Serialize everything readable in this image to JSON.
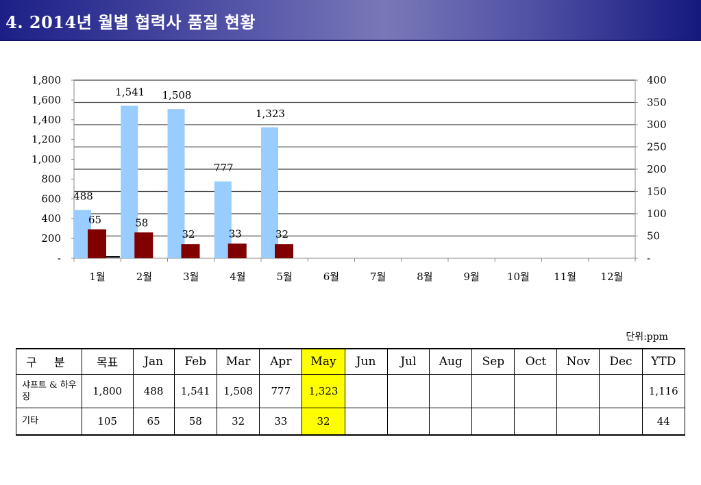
{
  "page": {
    "title": "4. 2014년 월별 협력사 품질 현황"
  },
  "chart_data": {
    "type": "bar",
    "categories": [
      "1월",
      "2월",
      "3월",
      "4월",
      "5월",
      "6월",
      "7월",
      "8월",
      "9월",
      "10월",
      "11월",
      "12월"
    ],
    "series": [
      {
        "values": [
          488,
          1541,
          1508,
          777,
          1323,
          null,
          null,
          null,
          null,
          null,
          null,
          null
        ],
        "axis": "left",
        "color": "#99ccff",
        "labels": [
          "488",
          "1,541",
          "1,508",
          "777",
          "1,323"
        ]
      },
      {
        "values": [
          65,
          58,
          32,
          33,
          32,
          null,
          null,
          null,
          null,
          null,
          null,
          null
        ],
        "axis": "right",
        "color": "#800000",
        "labels": [
          "65",
          "58",
          "32",
          "33",
          "32"
        ]
      }
    ],
    "target_line_left": 0,
    "y_left": {
      "min": 0,
      "max": 1800,
      "step": 200,
      "ticks": [
        "-",
        "200",
        "400",
        "600",
        "800",
        "1,000",
        "1,200",
        "1,400",
        "1,600",
        "1,800"
      ]
    },
    "y_right": {
      "min": 0,
      "max": 400,
      "step": 50,
      "ticks": [
        "-",
        "50",
        "100",
        "150",
        "200",
        "250",
        "300",
        "350",
        "400"
      ]
    },
    "grid": true,
    "legend": "none"
  },
  "table": {
    "unit_label": "단위:ppm",
    "headers": [
      "구 분",
      "목표",
      "Jan",
      "Feb",
      "Mar",
      "Apr",
      "May",
      "Jun",
      "Jul",
      "Aug",
      "Sep",
      "Oct",
      "Nov",
      "Dec",
      "YTD"
    ],
    "highlight_column": 6,
    "highlight_color": "#ffff00",
    "rows": [
      {
        "label": "샤프트 & 하우징",
        "cells": [
          "1,800",
          "488",
          "1,541",
          "1,508",
          "777",
          "1,323",
          "",
          "",
          "",
          "",
          "",
          "",
          "",
          "1,116"
        ]
      },
      {
        "label": "기타",
        "cells": [
          "105",
          "65",
          "58",
          "32",
          "33",
          "32",
          "",
          "",
          "",
          "",
          "",
          "",
          "",
          "44"
        ]
      }
    ]
  }
}
